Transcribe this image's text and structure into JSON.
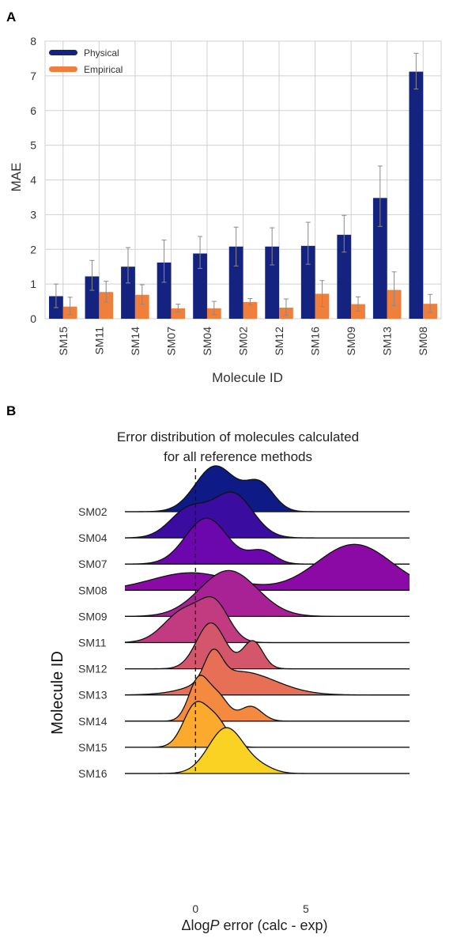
{
  "chart_data": [
    {
      "panel": "A",
      "type": "bar",
      "title": "",
      "xlabel": "Molecule ID",
      "ylabel": "MAE",
      "ylim": [
        0,
        8
      ],
      "yticks": [
        0,
        1,
        2,
        3,
        4,
        5,
        6,
        7,
        8
      ],
      "grid": true,
      "legend_position": "top-left",
      "categories": [
        "SM15",
        "SM11",
        "SM14",
        "SM07",
        "SM04",
        "SM02",
        "SM12",
        "SM16",
        "SM09",
        "SM13",
        "SM08"
      ],
      "series": [
        {
          "name": "Physical",
          "color": "#14237f",
          "values": [
            0.65,
            1.22,
            1.5,
            1.62,
            1.88,
            2.08,
            2.08,
            2.1,
            2.42,
            3.48,
            7.12
          ],
          "error_low": [
            0.32,
            0.82,
            1.03,
            1.05,
            1.45,
            1.52,
            1.55,
            1.57,
            1.92,
            2.66,
            6.62
          ],
          "error_high": [
            1.0,
            1.68,
            2.05,
            2.27,
            2.37,
            2.64,
            2.62,
            2.78,
            2.98,
            4.4,
            7.65
          ]
        },
        {
          "name": "Empirical",
          "color": "#f07f3c",
          "values": [
            0.35,
            0.77,
            0.69,
            0.3,
            0.3,
            0.48,
            0.32,
            0.72,
            0.42,
            0.83,
            0.43
          ],
          "error_low": [
            0.12,
            0.48,
            0.42,
            0.2,
            0.12,
            0.4,
            0.1,
            0.35,
            0.22,
            0.38,
            0.18
          ],
          "error_high": [
            0.62,
            1.08,
            0.98,
            0.42,
            0.5,
            0.58,
            0.57,
            1.1,
            0.63,
            1.35,
            0.7
          ]
        }
      ]
    },
    {
      "panel": "B",
      "type": "area",
      "subtype": "ridgeline",
      "title": "Error distribution of molecules calculated\nfor all reference methods",
      "title_lines": [
        "Error distribution of molecules calculated",
        "for all reference methods"
      ],
      "xlabel_prefix": "Δlog",
      "xlabel_italic": "P",
      "xlabel_suffix": " error (calc - exp)",
      "ylabel": "Molecule ID",
      "xlim": [
        -3.2,
        9.7
      ],
      "xticks": [
        0,
        5
      ],
      "reference_line": 0,
      "categories": [
        "SM02",
        "SM04",
        "SM07",
        "SM08",
        "SM09",
        "SM11",
        "SM12",
        "SM13",
        "SM14",
        "SM15",
        "SM16"
      ],
      "colors": [
        "#0e1b87",
        "#3a0ca0",
        "#6b07ad",
        "#8b0aa5",
        "#a82296",
        "#c23a80",
        "#d4566b",
        "#e66f55",
        "#f48a40",
        "#fcaa2e",
        "#f9d224"
      ],
      "distributions": [
        {
          "name": "SM02",
          "components": [
            {
              "mu": 0.9,
              "sigma": 0.9,
              "w": 1.0
            },
            {
              "mu": 2.9,
              "sigma": 0.65,
              "w": 0.6
            }
          ]
        },
        {
          "name": "SM04",
          "components": [
            {
              "mu": -0.3,
              "sigma": 0.85,
              "w": 0.65
            },
            {
              "mu": 1.7,
              "sigma": 0.9,
              "w": 1.0
            }
          ]
        },
        {
          "name": "SM07",
          "components": [
            {
              "mu": 0.5,
              "sigma": 0.95,
              "w": 1.0
            },
            {
              "mu": 3.0,
              "sigma": 0.6,
              "w": 0.28
            }
          ]
        },
        {
          "name": "SM08",
          "components": [
            {
              "mu": -0.2,
              "sigma": 1.8,
              "w": 0.16
            },
            {
              "mu": 7.2,
              "sigma": 1.7,
              "w": 0.42
            }
          ]
        },
        {
          "name": "SM09",
          "components": [
            {
              "mu": 1.5,
              "sigma": 1.3,
              "w": 0.9
            }
          ]
        },
        {
          "name": "SM11",
          "components": [
            {
              "mu": -0.5,
              "sigma": 0.9,
              "w": 0.7
            },
            {
              "mu": 0.9,
              "sigma": 0.65,
              "w": 0.75
            }
          ]
        },
        {
          "name": "SM12",
          "components": [
            {
              "mu": 0.7,
              "sigma": 0.65,
              "w": 1.0
            },
            {
              "mu": 2.6,
              "sigma": 0.45,
              "w": 0.6
            }
          ]
        },
        {
          "name": "SM13",
          "components": [
            {
              "mu": 0.8,
              "sigma": 0.4,
              "w": 0.9
            },
            {
              "mu": 2.0,
              "sigma": 1.6,
              "w": 0.75
            }
          ]
        },
        {
          "name": "SM14",
          "components": [
            {
              "mu": 0.15,
              "sigma": 0.45,
              "w": 1.0
            },
            {
              "mu": 1.05,
              "sigma": 0.45,
              "w": 0.55
            },
            {
              "mu": 2.5,
              "sigma": 0.5,
              "w": 0.35
            }
          ]
        },
        {
          "name": "SM15",
          "components": [
            {
              "mu": 0.0,
              "sigma": 0.55,
              "w": 0.9
            },
            {
              "mu": 1.0,
              "sigma": 0.5,
              "w": 0.5
            }
          ]
        },
        {
          "name": "SM16",
          "components": [
            {
              "mu": 1.4,
              "sigma": 0.8,
              "w": 0.9
            },
            {
              "mu": 3.0,
              "sigma": 0.6,
              "w": 0.1
            }
          ]
        }
      ]
    }
  ],
  "panel_labels": [
    "A",
    "B"
  ]
}
